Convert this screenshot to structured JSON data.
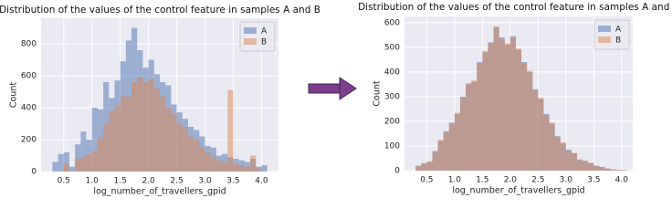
{
  "chart_data": [
    {
      "type": "histogram",
      "title": "Distribution of the values of the control feature in samples A and B",
      "xlabel": "log_number_of_travellers_gpid",
      "ylabel": "Count",
      "bins": [
        0.3,
        0.4,
        0.5,
        0.6,
        0.7,
        0.8,
        0.9,
        1.0,
        1.1,
        1.2,
        1.3,
        1.4,
        1.5,
        1.6,
        1.7,
        1.8,
        1.9,
        2.0,
        2.1,
        2.2,
        2.3,
        2.4,
        2.5,
        2.6,
        2.7,
        2.8,
        2.9,
        3.0,
        3.1,
        3.2,
        3.3,
        3.4,
        3.5,
        3.6,
        3.7,
        3.8,
        3.9,
        4.0,
        4.1
      ],
      "series": [
        {
          "name": "A",
          "color": "#4c72b0",
          "values": [
            60,
            110,
            120,
            30,
            170,
            250,
            200,
            400,
            390,
            560,
            460,
            570,
            690,
            820,
            900,
            760,
            650,
            700,
            610,
            560,
            540,
            420,
            370,
            330,
            280,
            260,
            220,
            160,
            150,
            100,
            110,
            90,
            80,
            70,
            60,
            80,
            30,
            40
          ]
        },
        {
          "name": "B",
          "color": "#dd8452",
          "values": [
            0,
            0,
            50,
            0,
            80,
            90,
            110,
            130,
            210,
            300,
            380,
            410,
            470,
            470,
            560,
            590,
            560,
            580,
            520,
            470,
            400,
            360,
            300,
            280,
            220,
            200,
            150,
            120,
            90,
            70,
            60,
            510,
            50,
            40,
            30,
            100,
            20,
            0
          ]
        }
      ],
      "xlim": [
        0.1,
        4.3
      ],
      "ylim": [
        0,
        960
      ],
      "xticks": [
        0.5,
        {
          "value": 1,
          "label": "1.0"
        },
        1.5,
        {
          "value": 2,
          "label": "2.0"
        },
        2.5,
        {
          "value": 3,
          "label": "3.0"
        },
        3.5,
        {
          "value": 4,
          "label": "4.0"
        }
      ],
      "yticks": [
        0,
        200,
        400,
        600,
        800
      ],
      "grid": true,
      "legend": "upper right"
    },
    {
      "type": "histogram",
      "title": "Distribution of the values of the control feature in samples A and B",
      "xlabel": "log_number_of_travellers_gpid",
      "ylabel": "Count",
      "bins": [
        0.3,
        0.4,
        0.5,
        0.6,
        0.7,
        0.8,
        0.9,
        1.0,
        1.1,
        1.2,
        1.3,
        1.4,
        1.5,
        1.6,
        1.7,
        1.8,
        1.9,
        2.0,
        2.1,
        2.2,
        2.3,
        2.4,
        2.5,
        2.6,
        2.7,
        2.8,
        2.9,
        3.0,
        3.1,
        3.2,
        3.3,
        3.4,
        3.5,
        3.6,
        3.7,
        3.8,
        3.9,
        4.0,
        4.1
      ],
      "series": [
        {
          "name": "A",
          "color": "#4c72b0",
          "values": [
            20,
            30,
            35,
            80,
            120,
            160,
            195,
            230,
            300,
            350,
            360,
            440,
            480,
            520,
            580,
            540,
            510,
            545,
            490,
            440,
            400,
            330,
            290,
            230,
            190,
            140,
            110,
            85,
            70,
            45,
            40,
            30,
            20,
            15,
            8,
            5,
            3,
            2
          ]
        },
        {
          "name": "B",
          "color": "#dd8452",
          "values": [
            18,
            28,
            38,
            75,
            125,
            155,
            190,
            235,
            295,
            355,
            365,
            435,
            485,
            515,
            585,
            535,
            515,
            540,
            495,
            435,
            405,
            325,
            295,
            225,
            195,
            135,
            115,
            80,
            72,
            42,
            38,
            32,
            18,
            14,
            9,
            4,
            3,
            2
          ]
        }
      ],
      "xlim": [
        0.1,
        4.2
      ],
      "ylim": [
        0,
        625
      ],
      "xticks": [
        0.5,
        {
          "value": 1,
          "label": "1.0"
        },
        1.5,
        {
          "value": 2,
          "label": "2.0"
        },
        2.5,
        {
          "value": 3,
          "label": "3.0"
        },
        3.5,
        {
          "value": 4,
          "label": "4.0"
        }
      ],
      "yticks": [
        0,
        100,
        200,
        300,
        400,
        500,
        600
      ],
      "grid": true,
      "legend": "upper right"
    }
  ]
}
